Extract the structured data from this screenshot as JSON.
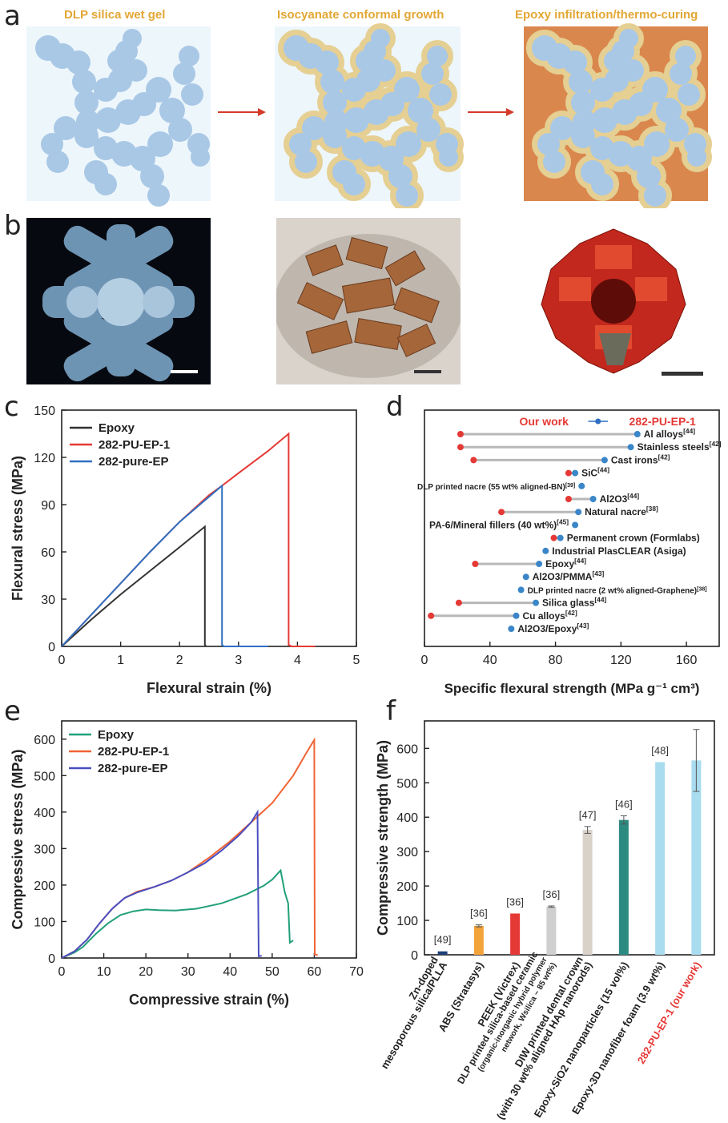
{
  "panel_a": {
    "label": "a",
    "titles": [
      "DLP silica wet gel",
      "Isocyanate conformal growth",
      "Epoxy infiltration/thermo-curing"
    ],
    "colors": {
      "particle": "#a9c8e6",
      "shell": "#e5cf92",
      "epoxy": "#da874e",
      "bg": "#edf6fb",
      "arrow": "#d53a2a",
      "title": "#e2a735"
    }
  },
  "panel_b": {
    "label": "b"
  },
  "chart_data": [
    {
      "id": "c",
      "type": "line",
      "xlabel": "Flexural strain (%)",
      "ylabel": "Flexural stress (MPa)",
      "xlim": [
        0,
        5
      ],
      "ylim": [
        0,
        150
      ],
      "xticks": [
        0,
        1,
        2,
        3,
        4,
        5
      ],
      "yticks": [
        0,
        30,
        60,
        90,
        120,
        150
      ],
      "series": [
        {
          "name": "Epoxy",
          "color": "#333333",
          "points": [
            [
              0,
              0
            ],
            [
              0.5,
              17
            ],
            [
              1,
              33
            ],
            [
              1.5,
              48
            ],
            [
              2,
              63
            ],
            [
              2.43,
              76
            ],
            [
              2.43,
              1
            ],
            [
              2.45,
              0
            ]
          ]
        },
        {
          "name": "282-PU-EP-1",
          "color": "#e53935",
          "points": [
            [
              0,
              0
            ],
            [
              0.5,
              20
            ],
            [
              1,
              40
            ],
            [
              1.5,
              60
            ],
            [
              2,
              79
            ],
            [
              2.5,
              96
            ],
            [
              2.72,
              102
            ],
            [
              3,
              110
            ],
            [
              3.5,
              124
            ],
            [
              3.85,
              135
            ],
            [
              3.85,
              1
            ],
            [
              3.9,
              0
            ],
            [
              4.3,
              0
            ]
          ]
        },
        {
          "name": "282-pure-EP",
          "color": "#2f6fc1",
          "points": [
            [
              0,
              0
            ],
            [
              0.5,
              20
            ],
            [
              1,
              40
            ],
            [
              1.5,
              60
            ],
            [
              2,
              79
            ],
            [
              2.5,
              95
            ],
            [
              2.72,
              102
            ],
            [
              2.72,
              1
            ],
            [
              2.75,
              0
            ],
            [
              3.5,
              0
            ]
          ]
        }
      ]
    },
    {
      "id": "d",
      "type": "scatter",
      "xlabel": "Specific flexural strength (MPa g⁻¹ cm³)",
      "xlim": [
        0,
        180
      ],
      "xticks": [
        0,
        40,
        80,
        120,
        160
      ],
      "our_work_label": "Our work",
      "our_work_name": "282-PU-EP-1",
      "our_work": {
        "value": 106,
        "err": 6
      },
      "items": [
        {
          "label": "Al alloys[44]",
          "lo": 22,
          "hi": 130
        },
        {
          "label": "Stainless steels[42]",
          "lo": 22,
          "hi": 126
        },
        {
          "label": "Cast irons[42]",
          "lo": 30,
          "hi": 110
        },
        {
          "label": "SiC[44]",
          "lo": 88,
          "hi": 92
        },
        {
          "label": "DLP printed nacre (55 wt% aligned-BN)[39]",
          "lo": null,
          "hi": 96
        },
        {
          "label": "Al2O3[44]",
          "lo": 88,
          "hi": 103
        },
        {
          "label": "Natural nacre[38]",
          "lo": 47,
          "hi": 94
        },
        {
          "label": "PA-6/Mineral fillers (40 wt%)[45]",
          "lo": null,
          "hi": 92
        },
        {
          "label": "Permanent crown (Formlabs)",
          "lo": 79,
          "hi": 83
        },
        {
          "label": "Industrial PlasCLEAR (Asiga)",
          "lo": null,
          "hi": 74
        },
        {
          "label": "Epoxy[44]",
          "lo": 31,
          "hi": 70
        },
        {
          "label": "Al2O3/PMMA[43]",
          "lo": null,
          "hi": 62
        },
        {
          "label": "DLP printed nacre (2 wt% aligned-Graphene)[38]",
          "lo": null,
          "hi": 59
        },
        {
          "label": "Silica glass[44]",
          "lo": 21,
          "hi": 68
        },
        {
          "label": "Cu alloys[42]",
          "lo": 4,
          "hi": 56
        },
        {
          "label": "Al2O3/Epoxy[43]",
          "lo": null,
          "hi": 53
        }
      ]
    },
    {
      "id": "e",
      "type": "line",
      "xlabel": "Compressive strain (%)",
      "ylabel": "Compressive stress (MPa)",
      "xlim": [
        0,
        70
      ],
      "ylim": [
        0,
        650
      ],
      "xticks": [
        0,
        10,
        20,
        30,
        40,
        50,
        60,
        70
      ],
      "yticks": [
        0,
        100,
        200,
        300,
        400,
        500,
        600
      ],
      "series": [
        {
          "name": "Epoxy",
          "color": "#22a07a",
          "points": [
            [
              0,
              0
            ],
            [
              3,
              15
            ],
            [
              5,
              30
            ],
            [
              8,
              65
            ],
            [
              11,
              95
            ],
            [
              14,
              118
            ],
            [
              17,
              128
            ],
            [
              20,
              133
            ],
            [
              23,
              131
            ],
            [
              27,
              130
            ],
            [
              32,
              135
            ],
            [
              38,
              150
            ],
            [
              44,
              175
            ],
            [
              48,
              198
            ],
            [
              50,
              215
            ],
            [
              52,
              240
            ],
            [
              53,
              180
            ],
            [
              53.8,
              150
            ],
            [
              54.2,
              42
            ],
            [
              55,
              48
            ]
          ]
        },
        {
          "name": "282-PU-EP-1",
          "color": "#f06434",
          "points": [
            [
              0,
              0
            ],
            [
              3,
              18
            ],
            [
              6,
              50
            ],
            [
              9,
              95
            ],
            [
              12,
              135
            ],
            [
              15,
              165
            ],
            [
              18,
              182
            ],
            [
              22,
              195
            ],
            [
              26,
              212
            ],
            [
              30,
              235
            ],
            [
              35,
              275
            ],
            [
              40,
              320
            ],
            [
              45,
              372
            ],
            [
              50,
              425
            ],
            [
              55,
              500
            ],
            [
              58,
              560
            ],
            [
              60,
              598
            ],
            [
              60.1,
              10
            ],
            [
              60.8,
              8
            ]
          ]
        },
        {
          "name": "282-pure-EP",
          "color": "#4a4ec0",
          "points": [
            [
              0,
              0
            ],
            [
              3,
              18
            ],
            [
              6,
              50
            ],
            [
              9,
              95
            ],
            [
              12,
              135
            ],
            [
              15,
              165
            ],
            [
              18,
              180
            ],
            [
              22,
              195
            ],
            [
              26,
              212
            ],
            [
              30,
              235
            ],
            [
              34,
              260
            ],
            [
              38,
              295
            ],
            [
              42,
              335
            ],
            [
              45,
              372
            ],
            [
              46.5,
              400
            ],
            [
              46.8,
              5
            ],
            [
              47.5,
              6
            ]
          ]
        }
      ]
    },
    {
      "id": "f",
      "type": "bar",
      "ylabel": "Compressive strength (MPa)",
      "ylim": [
        0,
        680
      ],
      "yticks": [
        0,
        100,
        200,
        300,
        400,
        500,
        600
      ],
      "bars": [
        {
          "label": "Zn-doped\nmesoporous silica/PLLA",
          "value": 10,
          "err": 0,
          "ref": "[49]",
          "color": "#1f3f78"
        },
        {
          "label": "ABS (Stratasys)",
          "value": 84,
          "err": 3,
          "ref": "[36]",
          "color": "#f2a33a"
        },
        {
          "label": "PEEK (Victrex)",
          "value": 120,
          "err": 0,
          "ref": "[36]",
          "color": "#e53935"
        },
        {
          "label": "DLP printed silica-based ceramic\n(organic-inorganic hybrid polymer\nnetwork, Wsilica ~ 85 wt%)",
          "value": 140,
          "err": 2,
          "ref": "[36]",
          "color": "#cfcfcf"
        },
        {
          "label": "DIW printed dental crown\n(with 30 wt% aligned HAp nanorods)",
          "value": 363,
          "err": 10,
          "ref": "[47]",
          "color": "#d8d2c9"
        },
        {
          "label": "Epoxy-SiO2 nanoparticles (15 vol%)",
          "value": 392,
          "err": 12,
          "ref": "[46]",
          "color": "#2c8b80"
        },
        {
          "label": "Epoxy-3D nanofiber foam (3.9 wt%)",
          "value": 560,
          "err": 0,
          "ref": "[48]",
          "color": "#a9dcef"
        },
        {
          "label": "282-PU-EP-1 (our work)",
          "value": 565,
          "err": 90,
          "ref": "",
          "color": "#a9dcef",
          "highlight": true
        }
      ]
    }
  ],
  "panel_labels": {
    "c": "c",
    "d": "d",
    "e": "e",
    "f": "f"
  }
}
